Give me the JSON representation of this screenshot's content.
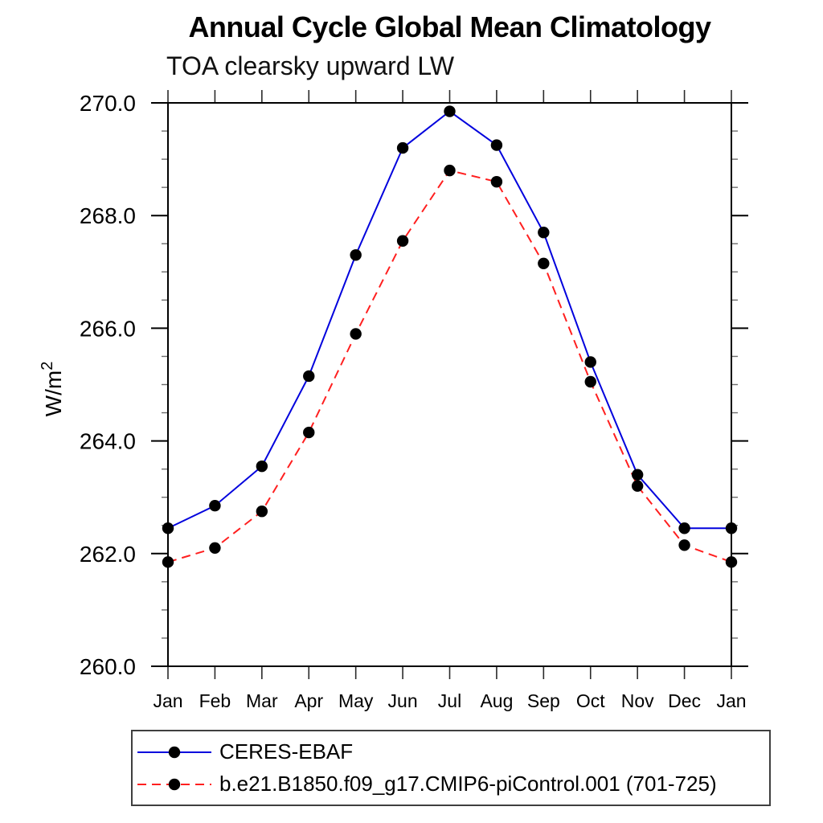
{
  "window": {
    "background": "#ffffff"
  },
  "header": {
    "title": "Annual Cycle Global Mean Climatology",
    "subtitle": "TOA clearsky upward LW"
  },
  "chart_data": {
    "type": "line",
    "title": "Annual Cycle Global Mean Climatology",
    "subtitle": "TOA clearsky upward LW",
    "xlabel": "",
    "ylabel": "W/m2",
    "ylabel_base": "W/m",
    "ylabel_exponent": "2",
    "x_categories": [
      "Jan",
      "Feb",
      "Mar",
      "Apr",
      "May",
      "Jun",
      "Jul",
      "Aug",
      "Sep",
      "Oct",
      "Nov",
      "Dec",
      "Jan"
    ],
    "ylim": [
      260.0,
      270.0
    ],
    "yticks_major": [
      260,
      262,
      264,
      266,
      268,
      270
    ],
    "ytick_labels": [
      "260.0",
      "262.0",
      "264.0",
      "266.0",
      "268.0",
      "270.0"
    ],
    "ytick_minor_step": 0.5,
    "grid": false,
    "axis_color": "#000000",
    "marker": "filled-circle",
    "marker_color": "#000000",
    "legend_position": "below-left-box",
    "series": [
      {
        "name": "CERES-EBAF",
        "color": "#0202dd",
        "line_style": "solid",
        "values": [
          262.45,
          262.85,
          263.55,
          265.15,
          267.3,
          269.2,
          269.85,
          269.25,
          267.7,
          265.4,
          263.4,
          262.45,
          262.45
        ]
      },
      {
        "name": "b.e21.B1850.f09_g17.CMIP6-piControl.001 (701-725)",
        "color": "#ff1f1f",
        "line_style": "dashed",
        "values": [
          261.85,
          262.1,
          262.75,
          264.15,
          265.9,
          267.55,
          268.8,
          268.6,
          267.15,
          265.05,
          263.2,
          262.15,
          261.85
        ]
      }
    ]
  }
}
